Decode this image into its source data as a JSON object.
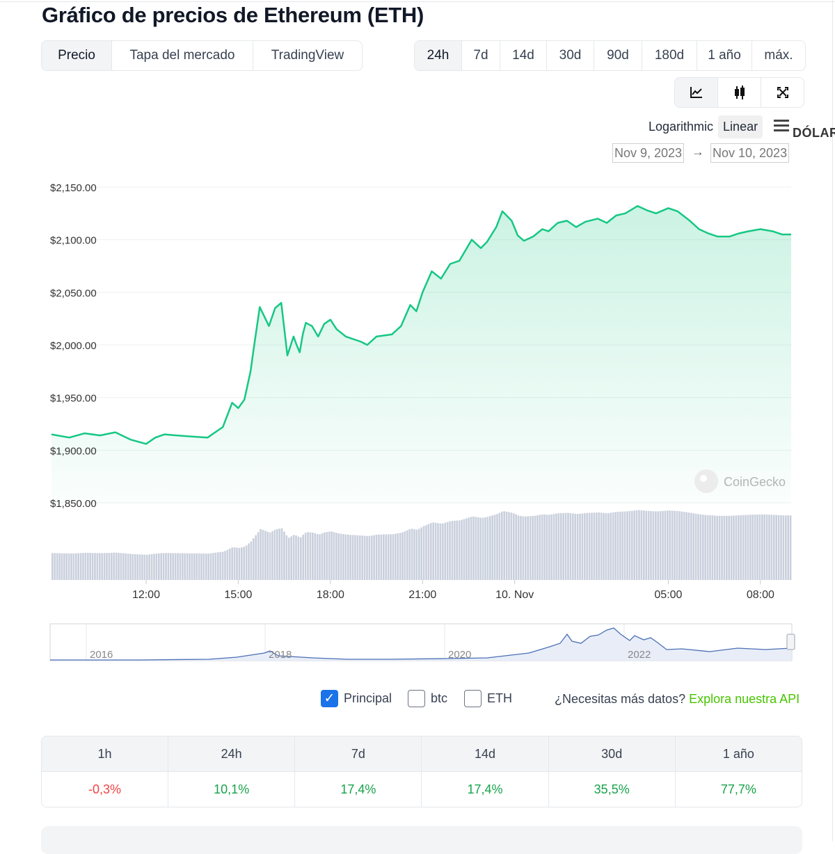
{
  "title": "Gráfico de precios de Ethereum (ETH)",
  "tabs": [
    {
      "label": "Precio",
      "active": true
    },
    {
      "label": "Tapa del mercado",
      "active": false
    },
    {
      "label": "TradingView",
      "active": false
    }
  ],
  "ranges": [
    {
      "label": "24h",
      "active": true
    },
    {
      "label": "7d",
      "active": false
    },
    {
      "label": "14d",
      "active": false
    },
    {
      "label": "30d",
      "active": false
    },
    {
      "label": "90d",
      "active": false
    },
    {
      "label": "180d",
      "active": false
    },
    {
      "label": "1 año",
      "active": false
    },
    {
      "label": "máx.",
      "active": false
    }
  ],
  "view_icons": [
    "line-chart-icon",
    "candlestick-icon",
    "fullscreen-icon"
  ],
  "scale": {
    "log_label": "Logarithmic",
    "linear_label": "Linear",
    "active": "Linear"
  },
  "currency": "DÓLAR",
  "date_range": {
    "from": "Nov 9, 2023",
    "to": "Nov 10, 2023",
    "arrow": "→"
  },
  "watermark": "CoinGecko",
  "colors": {
    "line": "#16c784",
    "volume": "#c8cedb",
    "navigator": "#4a6fb5",
    "positive": "#16a34a",
    "negative": "#ef4444",
    "link": "#47c400"
  },
  "chart_data": {
    "type": "area",
    "title": "",
    "xlabel": "",
    "ylabel": "",
    "ylim": [
      1850,
      2150
    ],
    "y_ticks": [
      "$2,150.00",
      "$2,100.00",
      "$2,050.00",
      "$2,000.00",
      "$1,950.00",
      "$1,900.00",
      "$1,850.00"
    ],
    "x_ticks": [
      {
        "label": "12:00",
        "t": 3.0
      },
      {
        "label": "15:00",
        "t": 6.0
      },
      {
        "label": "18:00",
        "t": 9.0
      },
      {
        "label": "21:00",
        "t": 12.0
      },
      {
        "label": "10. Nov",
        "t": 15.0
      },
      {
        "label": "05:00",
        "t": 20.0
      },
      {
        "label": "08:00",
        "t": 23.0
      }
    ],
    "t_range": [
      -0.08,
      24.0
    ],
    "series": [
      {
        "x": [
          -0.08,
          0.5,
          1.0,
          1.5,
          2.0,
          2.5,
          3.0,
          3.3,
          3.6,
          4.0,
          4.5,
          5.0,
          5.5,
          5.8,
          6.0,
          6.2,
          6.4,
          6.5,
          6.7,
          7.0,
          7.2,
          7.4,
          7.6,
          7.8,
          7.9,
          8.0,
          8.1,
          8.2,
          8.4,
          8.6,
          8.8,
          9.0,
          9.2,
          9.5,
          9.7,
          10.0,
          10.2,
          10.5,
          11.0,
          11.3,
          11.6,
          11.8,
          12.0,
          12.3,
          12.6,
          12.9,
          13.2,
          13.6,
          13.9,
          14.1,
          14.4,
          14.6,
          14.9,
          15.1,
          15.3,
          15.6,
          15.9,
          16.1,
          16.4,
          16.7,
          17.0,
          17.3,
          17.7,
          18.0,
          18.3,
          18.6,
          19.0,
          19.3,
          19.6,
          20.0,
          20.3,
          20.7,
          21.0,
          21.3,
          21.6,
          22.0,
          22.3,
          22.6,
          23.0,
          23.4,
          23.7,
          24.0
        ],
        "y": [
          1915,
          1912,
          1916,
          1914,
          1917,
          1910,
          1906,
          1912,
          1915,
          1914,
          1913,
          1912,
          1922,
          1945,
          1940,
          1948,
          1975,
          1996,
          2036,
          2018,
          2035,
          2040,
          1990,
          2008,
          2000,
          1993,
          2010,
          2021,
          2018,
          2008,
          2020,
          2024,
          2015,
          2008,
          2006,
          2003,
          2000,
          2008,
          2010,
          2018,
          2038,
          2032,
          2050,
          2070,
          2063,
          2077,
          2080,
          2100,
          2092,
          2098,
          2112,
          2127,
          2118,
          2104,
          2099,
          2103,
          2110,
          2108,
          2116,
          2118,
          2112,
          2117,
          2120,
          2116,
          2123,
          2125,
          2132,
          2128,
          2125,
          2130,
          2127,
          2118,
          2110,
          2106,
          2103,
          2103,
          2106,
          2108,
          2110,
          2108,
          2105,
          2105
        ]
      }
    ],
    "navigator_x_ticks": [
      "2016",
      "2018",
      "2020",
      "2022"
    ]
  },
  "legend": [
    {
      "label": "Principal",
      "checked": true
    },
    {
      "label": "btc",
      "checked": false
    },
    {
      "label": "ETH",
      "checked": false
    }
  ],
  "api_prompt": "¿Necesitas más datos?",
  "api_link": "Explora nuestra API",
  "performance": {
    "headers": [
      "1h",
      "24h",
      "7d",
      "14d",
      "30d",
      "1 año"
    ],
    "values": [
      "-0,3%",
      "10,1%",
      "17,4%",
      "17,4%",
      "35,5%",
      "77,7%"
    ],
    "signs": [
      "neg",
      "pos",
      "pos",
      "pos",
      "pos",
      "pos"
    ]
  }
}
